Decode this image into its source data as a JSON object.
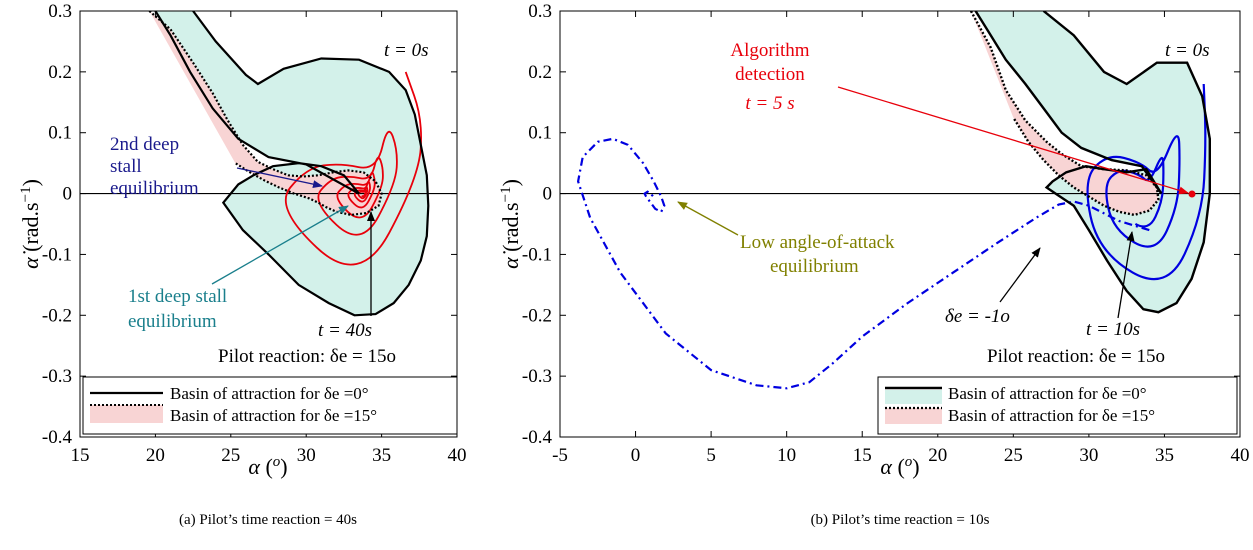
{
  "chart_data": [
    {
      "type": "line",
      "caption": "(a) Pilot’s time reaction = 40s",
      "xlabel": "α (o)",
      "ylabel": "α̇ (rad.s−1)",
      "xlim": [
        15,
        40
      ],
      "ylim": [
        -0.4,
        0.3
      ],
      "xticks": [
        "15",
        "20",
        "25",
        "30",
        "35",
        "40"
      ],
      "yticks": [
        "-0.4",
        "-0.3",
        "-0.2",
        "-0.1",
        "0",
        "0.1",
        "0.2",
        "0.3"
      ],
      "grid": false,
      "legend_position": "bottom",
      "legend": [
        "Basin of attraction for δe =0°",
        "Basin of attraction for δe =15°"
      ],
      "annotations": {
        "t0": "t = 0s",
        "t_end": "t = 40s",
        "pilot": "Pilot reaction: δe = 15o",
        "second_eq": [
          "2nd deep",
          "stall",
          "equilibrium"
        ],
        "first_eq": [
          "1st deep stall",
          "equilibrium"
        ]
      },
      "colors": {
        "trajectory": "#e8000b",
        "basin0_fill": "#d3f1ea",
        "basin15_fill": "#f8d4d4",
        "second_eq": "#1a1a8c",
        "first_eq": "#1a7f8c"
      },
      "series": [
        {
          "name": "Basin of attraction for δe =0°",
          "style": "solid",
          "x": [
            22.5,
            24.0,
            26.0,
            26.8,
            28.5,
            31.0,
            33.5,
            35.5,
            36.6,
            37.2,
            37.6,
            38.0,
            38.1,
            38.0,
            37.6,
            36.8,
            35.8,
            34.6,
            33.2,
            31.5,
            29.5,
            27.5,
            25.8,
            24.5,
            25.5,
            26.5,
            27.8,
            29.5,
            31.0,
            32.5,
            33.5,
            30.0,
            27.5,
            25.5,
            23.8,
            22.3,
            21.0,
            20.0
          ],
          "y": [
            0.3,
            0.25,
            0.195,
            0.18,
            0.205,
            0.222,
            0.22,
            0.2,
            0.17,
            0.13,
            0.08,
            0.03,
            -0.02,
            -0.07,
            -0.11,
            -0.15,
            -0.18,
            -0.198,
            -0.2,
            -0.18,
            -0.15,
            -0.1,
            -0.06,
            -0.015,
            0.015,
            0.03,
            0.045,
            0.05,
            0.045,
            0.03,
            0.0,
            0.048,
            0.06,
            0.09,
            0.14,
            0.2,
            0.26,
            0.3
          ]
        },
        {
          "name": "Basin of attraction for δe =15°",
          "style": "dotted",
          "x": [
            19.6,
            21.0,
            22.5,
            23.8,
            24.8,
            25.8,
            26.8,
            27.8,
            28.8,
            29.8,
            30.8,
            31.8,
            32.8,
            33.8,
            34.6,
            35.0,
            34.8,
            34.0,
            33.0,
            32.0,
            31.3,
            30.8,
            30.2,
            29.2,
            28.2,
            27.2,
            26.2,
            25.3
          ],
          "y": [
            0.3,
            0.27,
            0.215,
            0.165,
            0.12,
            0.08,
            0.052,
            0.04,
            0.03,
            0.028,
            0.03,
            0.035,
            0.038,
            0.035,
            0.02,
            0.0,
            -0.02,
            -0.032,
            -0.035,
            -0.03,
            -0.022,
            -0.015,
            -0.008,
            0.0,
            0.01,
            0.022,
            0.036,
            0.05
          ]
        },
        {
          "name": "",
          "style": "solid",
          "color": "trajectory",
          "spiral": {
            "x_start": [
              36.6,
              38.0,
              38.0,
              33.5,
              26.0,
              28.5,
              31.5,
              35.2
            ],
            "y_start": [
              0.2,
              0.13,
              0.03,
              -0.19,
              -0.03,
              0.06,
              0.075,
              0.06
            ],
            "center": [
              33.8,
              0.0
            ],
            "turns": 6.5,
            "decay": 0.58
          }
        }
      ]
    },
    {
      "type": "line",
      "caption": "(b) Pilot’s time reaction = 10s",
      "xlabel": "α (o)",
      "ylabel": "α̇ (rad.s−1)",
      "xlim": [
        -5,
        40
      ],
      "ylim": [
        -0.4,
        0.3
      ],
      "xticks": [
        "-5",
        "0",
        "5",
        "10",
        "15",
        "20",
        "25",
        "30",
        "35",
        "40"
      ],
      "yticks": [
        "-0.4",
        "-0.3",
        "-0.2",
        "-0.1",
        "0",
        "0.1",
        "0.2",
        "0.3"
      ],
      "grid": false,
      "legend_position": "bottom-right",
      "legend": [
        "Basin of attraction for δe =0°",
        "Basin of attraction for δe =15°"
      ],
      "annotations": {
        "t0": "t = 0s",
        "t_end": "t = 10s",
        "pilot": "Pilot reaction:  δe = 15o",
        "detection": [
          "Algorithm",
          "detection"
        ],
        "detection_time": "t = 5 s",
        "low_eq": [
          "Low angle-of-attack",
          "equilibrium"
        ],
        "delta_e": "δe = -1o"
      },
      "colors": {
        "trajectory": "#0000e0",
        "detection": "#e8000b",
        "low_eq": "#808000",
        "basin0_fill": "#d3f1ea",
        "basin15_fill": "#f8d4d4"
      },
      "series": [
        {
          "name": "Basin of attraction for δe =0°",
          "style": "solid",
          "x": [
            27.0,
            29.0,
            31.0,
            32.5,
            34.5,
            36.5,
            37.5,
            38.0,
            38.0,
            37.6,
            36.8,
            35.8,
            34.6,
            33.6,
            32.5,
            31.2,
            30.0,
            29.0,
            27.8,
            27.2,
            27.6,
            28.5,
            29.8,
            31.0,
            32.5,
            33.8,
            34.8,
            33.5,
            31.5,
            29.5,
            28.2,
            27.0,
            25.8,
            24.5,
            23.5,
            22.5
          ],
          "y": [
            0.3,
            0.26,
            0.2,
            0.18,
            0.215,
            0.215,
            0.16,
            0.09,
            0.0,
            -0.08,
            -0.14,
            -0.18,
            -0.195,
            -0.19,
            -0.16,
            -0.11,
            -0.06,
            -0.02,
            0.0,
            0.01,
            0.02,
            0.035,
            0.045,
            0.04,
            0.035,
            0.04,
            0.0,
            0.045,
            0.055,
            0.075,
            0.1,
            0.14,
            0.18,
            0.22,
            0.26,
            0.3
          ]
        },
        {
          "name": "Basin of attraction for δe =15°",
          "style": "dotted",
          "x": [
            22.2,
            23.5,
            24.5,
            25.8,
            27.2,
            28.2,
            29.5,
            31.0,
            32.5,
            33.8,
            34.5,
            34.6,
            34.0,
            33.0,
            32.0,
            31.0,
            30.0,
            29.0,
            28.0,
            27.0,
            26.0,
            25.0
          ],
          "y": [
            0.3,
            0.24,
            0.17,
            0.12,
            0.085,
            0.065,
            0.045,
            0.04,
            0.038,
            0.03,
            0.01,
            -0.01,
            -0.028,
            -0.035,
            -0.03,
            -0.02,
            -0.005,
            0.01,
            0.03,
            0.055,
            0.085,
            0.125
          ]
        },
        {
          "name": "",
          "style": "solid",
          "color": "trajectory",
          "spiral": {
            "x_start": [
              37.6,
              38.0,
              38.0,
              35.5,
              30.0,
              28.5,
              30.5,
              33.5,
              35.2
            ],
            "y_start": [
              0.18,
              0.09,
              -0.04,
              -0.19,
              -0.12,
              0.03,
              0.09,
              0.075,
              0.04
            ],
            "center": [
              33.2,
              0.0
            ],
            "turns": 2.4,
            "decay": 0.62
          }
        },
        {
          "name": "",
          "style": "dashdot",
          "color": "trajectory",
          "x": [
            34.0,
            32.0,
            30.0,
            29.0,
            28.0,
            26.5,
            24.0,
            21.0,
            18.0,
            15.0,
            13.0,
            11.5,
            10.0,
            8.0,
            5.0,
            2.0,
            -1.0,
            -3.0,
            -3.8,
            -3.5,
            -2.5,
            -1.5,
            -0.5,
            0.5,
            1.2,
            1.7,
            1.9,
            1.7,
            1.3,
            1.0,
            0.7,
            0.6,
            0.8,
            1.0,
            1.1,
            1.0
          ],
          "y": [
            -0.06,
            -0.045,
            -0.02,
            -0.013,
            -0.018,
            -0.04,
            -0.08,
            -0.13,
            -0.18,
            -0.235,
            -0.28,
            -0.31,
            -0.32,
            -0.315,
            -0.29,
            -0.23,
            -0.13,
            -0.04,
            0.02,
            0.06,
            0.085,
            0.09,
            0.08,
            0.05,
            0.02,
            -0.005,
            -0.02,
            -0.03,
            -0.025,
            -0.015,
            -0.005,
            0.0,
            0.003,
            0.0,
            -0.003,
            -0.005
          ]
        }
      ]
    }
  ]
}
